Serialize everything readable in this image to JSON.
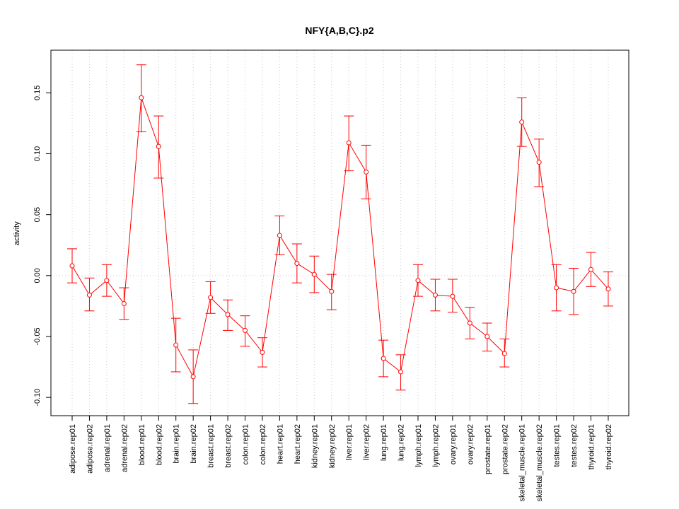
{
  "chart_data": {
    "type": "line",
    "title": "NFY{A,B,C}.p2",
    "xlabel": "",
    "ylabel": "activity",
    "ylim": [
      -0.115,
      0.185
    ],
    "yticks": [
      -0.1,
      -0.05,
      0.0,
      0.05,
      0.1,
      0.15
    ],
    "ytick_labels": [
      "-0.10",
      "-0.05",
      "0.00",
      "0.05",
      "0.10",
      "0.15"
    ],
    "grid": "vertical-dotted",
    "colors": {
      "series": "#ff0000",
      "grid": "#cccccc",
      "axis": "#000000"
    },
    "categories": [
      "adipose.rep01",
      "adipose.rep02",
      "adrenal.rep01",
      "adrenal.rep02",
      "blood.rep01",
      "blood.rep02",
      "brain.rep01",
      "brain.rep02",
      "breast.rep01",
      "breast.rep02",
      "colon.rep01",
      "colon.rep02",
      "heart.rep01",
      "heart.rep02",
      "kidney.rep01",
      "kidney.rep02",
      "liver.rep01",
      "liver.rep02",
      "lung.rep01",
      "lung.rep02",
      "lymph.rep01",
      "lymph.rep02",
      "ovary.rep01",
      "ovary.rep02",
      "prostate.rep01",
      "prostate.rep02",
      "skeletal_muscle.rep01",
      "skeletal_muscle.rep02",
      "testes.rep01",
      "testes.rep02",
      "thyroid.rep01",
      "thyroid.rep02"
    ],
    "series": [
      {
        "values": [
          0.008,
          -0.016,
          -0.004,
          -0.023,
          0.146,
          0.106,
          -0.057,
          -0.083,
          -0.018,
          -0.032,
          -0.045,
          -0.063,
          0.033,
          0.01,
          0.001,
          -0.013,
          0.109,
          0.085,
          -0.068,
          -0.079,
          -0.004,
          -0.016,
          -0.017,
          -0.039,
          -0.05,
          -0.064,
          0.126,
          0.093,
          -0.01,
          -0.013,
          0.005,
          -0.011
        ],
        "upper": [
          0.022,
          -0.002,
          0.009,
          -0.01,
          0.173,
          0.131,
          -0.035,
          -0.061,
          -0.005,
          -0.02,
          -0.033,
          -0.051,
          0.049,
          0.026,
          0.016,
          0.001,
          0.131,
          0.107,
          -0.053,
          -0.065,
          0.009,
          -0.003,
          -0.003,
          -0.026,
          -0.039,
          -0.052,
          0.146,
          0.112,
          0.009,
          0.006,
          0.019,
          0.003
        ],
        "lower": [
          -0.006,
          -0.029,
          -0.017,
          -0.036,
          0.118,
          0.08,
          -0.079,
          -0.105,
          -0.031,
          -0.045,
          -0.058,
          -0.075,
          0.017,
          -0.006,
          -0.014,
          -0.028,
          0.086,
          0.063,
          -0.083,
          -0.094,
          -0.017,
          -0.029,
          -0.03,
          -0.052,
          -0.062,
          -0.075,
          0.106,
          0.073,
          -0.029,
          -0.032,
          -0.009,
          -0.025
        ]
      }
    ]
  }
}
